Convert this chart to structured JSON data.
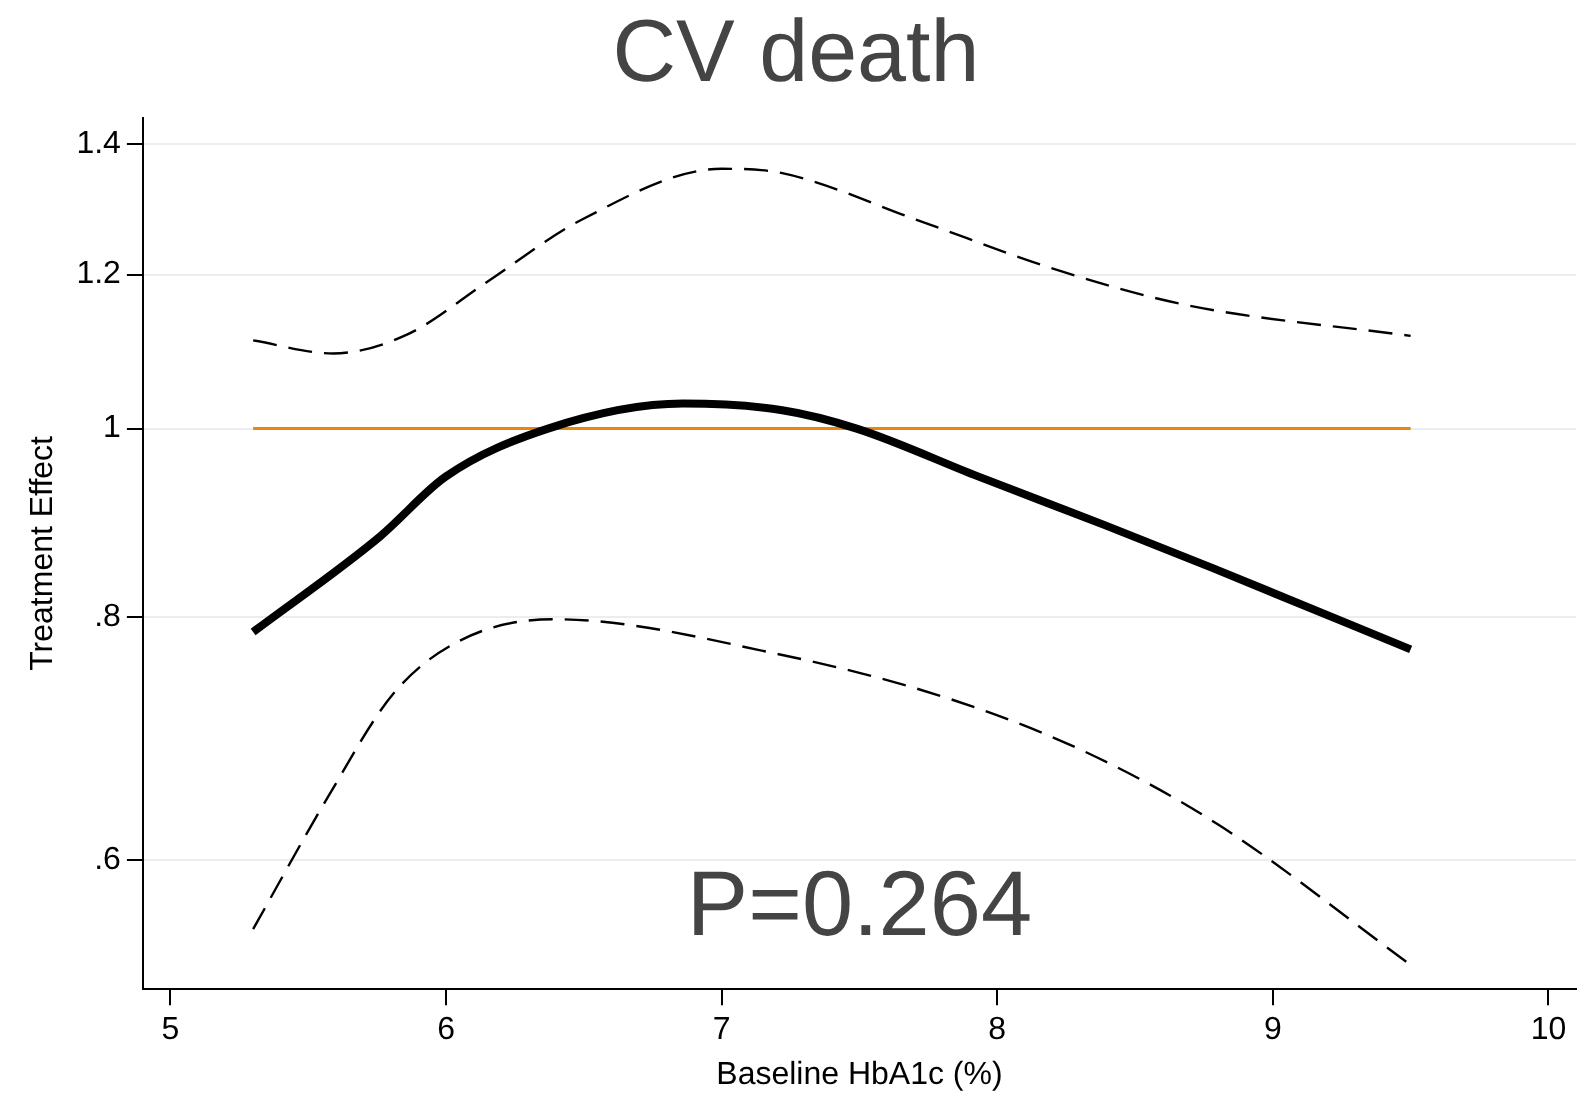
{
  "chart_data": {
    "type": "line",
    "title": "CV death",
    "xlabel": "Baseline HbA1c (%)",
    "ylabel": "Treatment Effect",
    "log": "y",
    "grid": "y",
    "legend": false,
    "marker": "none",
    "xlim": [
      4.9,
      10.1
    ],
    "xticks": [
      5,
      6,
      7,
      8,
      9,
      10
    ],
    "ylim": [
      0.515,
      1.445
    ],
    "yticks": [
      {
        "value": 0.6,
        "label": ".6"
      },
      {
        "value": 0.8,
        "label": ".8"
      },
      1,
      1.2,
      1.4
    ],
    "series": [
      {
        "color": "#000000",
        "line_style": "solid",
        "x": [
          5.3,
          5.76,
          6.0,
          6.37,
          6.86,
          7.22,
          7.49,
          7.93,
          8.39,
          8.78,
          9.5
        ],
        "values": [
          0.786,
          0.88,
          0.945,
          1.0,
          1.03,
          1.022,
          1.0,
          0.945,
          0.892,
          0.848,
          0.77
        ]
      },
      {
        "color": "#000000",
        "line_style": "dashed",
        "x": [
          5.3,
          5.59,
          5.86,
          6.15,
          6.49,
          7.0,
          7.22,
          7.71,
          8.19,
          8.68,
          9.5
        ],
        "values": [
          1.11,
          1.093,
          1.118,
          1.19,
          1.28,
          1.36,
          1.353,
          1.28,
          1.21,
          1.158,
          1.116
        ]
      },
      {
        "color": "#000000",
        "line_style": "dashed",
        "x": [
          5.3,
          5.57,
          5.81,
          6.05,
          6.39,
          7.2,
          7.83,
          8.32,
          8.8,
          9.5
        ],
        "values": [
          0.553,
          0.646,
          0.731,
          0.778,
          0.798,
          0.766,
          0.726,
          0.682,
          0.626,
          0.53
        ]
      }
    ],
    "ref_lines": [
      {
        "axis": "y",
        "value": 1,
        "color": "#e8870e"
      }
    ],
    "annotations": [
      "P=0.264"
    ]
  }
}
